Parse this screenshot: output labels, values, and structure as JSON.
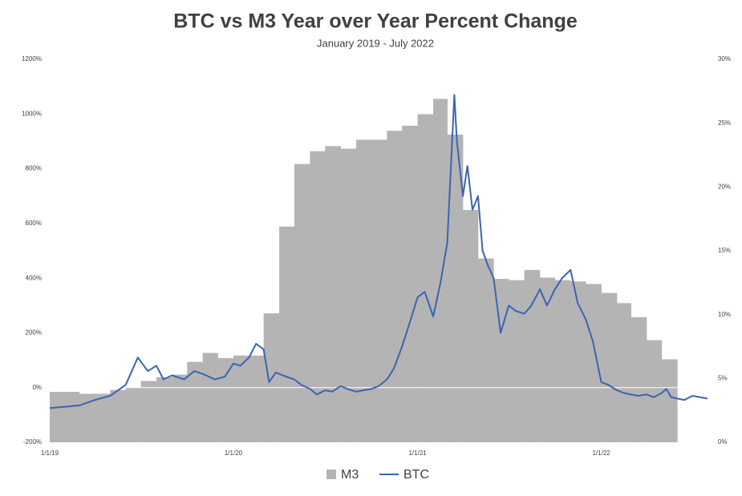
{
  "chart_data": {
    "type": "bar-line",
    "title": "BTC vs M3 Year over Year Percent Change",
    "subtitle": "January 2019 - July 2022",
    "xlim": [
      "1/1/19",
      "7/31/22"
    ],
    "xticks": [
      "1/1/19",
      "1/1/20",
      "1/1/21",
      "1/1/22"
    ],
    "ylim": [
      -200,
      1200
    ],
    "yticks": [
      {
        "value": -200,
        "label": "-200%"
      },
      {
        "value": 0,
        "label": "0%"
      },
      {
        "value": 200,
        "label": "200%"
      },
      {
        "value": 400,
        "label": "400%"
      },
      {
        "value": 600,
        "label": "600%"
      },
      {
        "value": 800,
        "label": "800%"
      },
      {
        "value": 1000,
        "label": "1000%"
      },
      {
        "value": 1200,
        "label": "1200%"
      }
    ],
    "y2lim": [
      0,
      30
    ],
    "y2ticks": [
      {
        "value": 0,
        "label": "0%"
      },
      {
        "value": 5,
        "label": "5%"
      },
      {
        "value": 10,
        "label": "10%"
      },
      {
        "value": 15,
        "label": "15%"
      },
      {
        "value": 20,
        "label": "20%"
      },
      {
        "value": 25,
        "label": "25%"
      },
      {
        "value": 30,
        "label": "30%"
      }
    ],
    "legend": "bottom",
    "series": [
      {
        "name": "M3",
        "type": "bar",
        "axis": "y2",
        "color": "#b4b4b4",
        "x": [
          "1/1/19",
          "2/1/19",
          "3/1/19",
          "4/1/19",
          "5/1/19",
          "6/1/19",
          "7/1/19",
          "8/1/19",
          "9/1/19",
          "10/1/19",
          "11/1/19",
          "12/1/19",
          "1/1/20",
          "2/1/20",
          "3/1/20",
          "4/1/20",
          "5/1/20",
          "6/1/20",
          "7/1/20",
          "8/1/20",
          "9/1/20",
          "10/1/20",
          "11/1/20",
          "12/1/20",
          "1/1/21",
          "2/1/21",
          "3/1/21",
          "4/1/21",
          "5/1/21",
          "6/1/21",
          "7/1/21",
          "8/1/21",
          "9/1/21",
          "10/1/21",
          "11/1/21",
          "12/1/21",
          "1/1/22",
          "2/1/22",
          "3/1/22",
          "4/1/22",
          "5/1/22"
        ],
        "values": [
          3.95,
          3.95,
          3.8,
          3.8,
          4.1,
          4.3,
          4.8,
          5.1,
          5.3,
          6.3,
          7.0,
          6.6,
          6.8,
          6.8,
          10.1,
          16.9,
          21.8,
          22.8,
          23.2,
          23.0,
          23.7,
          23.7,
          24.4,
          24.8,
          25.7,
          26.9,
          24.1,
          18.2,
          14.4,
          12.8,
          12.7,
          13.5,
          12.9,
          12.7,
          12.6,
          12.4,
          11.7,
          10.9,
          9.8,
          8.0,
          6.5
        ]
      },
      {
        "name": "BTC",
        "type": "line",
        "color": "#3a64b4",
        "x": [
          "1/1/19",
          "2/1/19",
          "3/1/19",
          "4/1/19",
          "5/1/19",
          "6/1/19",
          "6/25/19",
          "7/15/19",
          "8/1/19",
          "8/15/19",
          "9/1/19",
          "9/25/19",
          "10/15/19",
          "11/1/19",
          "11/25/19",
          "12/15/19",
          "1/1/20",
          "1/15/20",
          "2/1/20",
          "2/15/20",
          "3/1/20",
          "3/12/20",
          "3/25/20",
          "4/15/20",
          "5/1/20",
          "5/15/20",
          "6/1/20",
          "6/15/20",
          "7/1/20",
          "7/15/20",
          "8/1/20",
          "8/15/20",
          "9/1/20",
          "9/15/20",
          "10/1/20",
          "10/15/20",
          "11/1/20",
          "11/15/20",
          "12/1/20",
          "12/15/20",
          "1/1/21",
          "1/15/21",
          "2/1/21",
          "2/15/21",
          "3/1/21",
          "3/15/21",
          "3/20/21",
          "4/1/21",
          "4/10/21",
          "4/20/21",
          "5/1/21",
          "5/10/21",
          "5/20/21",
          "6/1/21",
          "6/15/21",
          "7/1/21",
          "7/15/21",
          "8/1/21",
          "8/15/21",
          "9/1/21",
          "9/15/21",
          "10/1/21",
          "10/15/21",
          "11/1/21",
          "11/15/21",
          "12/1/21",
          "12/15/21",
          "1/1/22",
          "1/15/22",
          "2/1/22",
          "2/15/22",
          "3/1/22",
          "3/15/22",
          "4/1/22",
          "4/15/22",
          "5/1/22",
          "5/10/22",
          "5/20/22",
          "6/1/22",
          "6/15/22",
          "7/1/22",
          "7/31/22"
        ],
        "values": [
          -75,
          -70,
          -65,
          -45,
          -30,
          10,
          110,
          60,
          80,
          30,
          45,
          30,
          60,
          50,
          30,
          40,
          88,
          80,
          110,
          160,
          140,
          20,
          55,
          40,
          30,
          10,
          -5,
          -25,
          -10,
          -15,
          5,
          -5,
          -15,
          -10,
          -5,
          5,
          30,
          70,
          150,
          230,
          330,
          350,
          260,
          380,
          530,
          1070,
          900,
          700,
          810,
          650,
          700,
          500,
          450,
          400,
          200,
          300,
          280,
          270,
          300,
          360,
          300,
          360,
          400,
          430,
          310,
          250,
          170,
          20,
          10,
          -10,
          -20,
          -25,
          -30,
          -25,
          -35,
          -20,
          -5,
          -35,
          -40,
          -45,
          -30,
          -40
        ]
      }
    ]
  }
}
